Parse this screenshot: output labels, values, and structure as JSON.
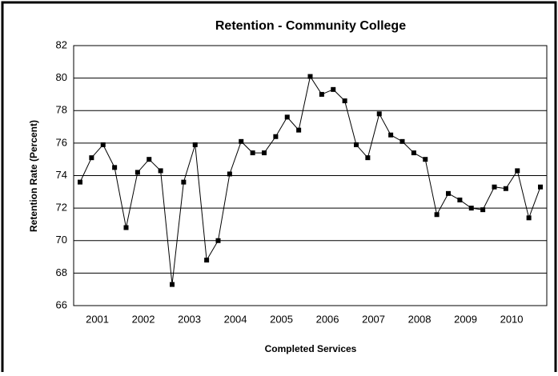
{
  "chart_data": {
    "type": "line",
    "title": "Retention - Community College",
    "x_label": "Completed Services",
    "y_label": "Retention Rate (Percent)",
    "categories": [
      null,
      null,
      "2001",
      null,
      null,
      null,
      "2002",
      null,
      null,
      null,
      "2003",
      null,
      null,
      null,
      "2004",
      null,
      null,
      null,
      "2005",
      null,
      null,
      null,
      "2006",
      null,
      null,
      null,
      "2007",
      null,
      null,
      null,
      "2008",
      null,
      null,
      null,
      "2009",
      null,
      null,
      null,
      "2010",
      null,
      null
    ],
    "series": [
      {
        "name": "Retention",
        "color": "#000000",
        "values": [
          73.6,
          75.1,
          75.9,
          74.5,
          70.8,
          74.2,
          75.0,
          74.3,
          67.3,
          73.6,
          75.9,
          68.8,
          70.0,
          74.1,
          76.1,
          75.4,
          75.4,
          76.4,
          77.6,
          76.8,
          80.1,
          79.0,
          79.3,
          78.6,
          75.9,
          75.1,
          77.8,
          76.5,
          76.1,
          75.4,
          75.0,
          71.6,
          72.9,
          72.5,
          72.0,
          71.9,
          73.3,
          73.2,
          74.3,
          71.4,
          73.3
        ]
      }
    ],
    "ylim": [
      66,
      82
    ],
    "yticks": [
      66,
      68,
      70,
      72,
      74,
      76,
      78,
      80,
      82
    ],
    "grid": true
  }
}
